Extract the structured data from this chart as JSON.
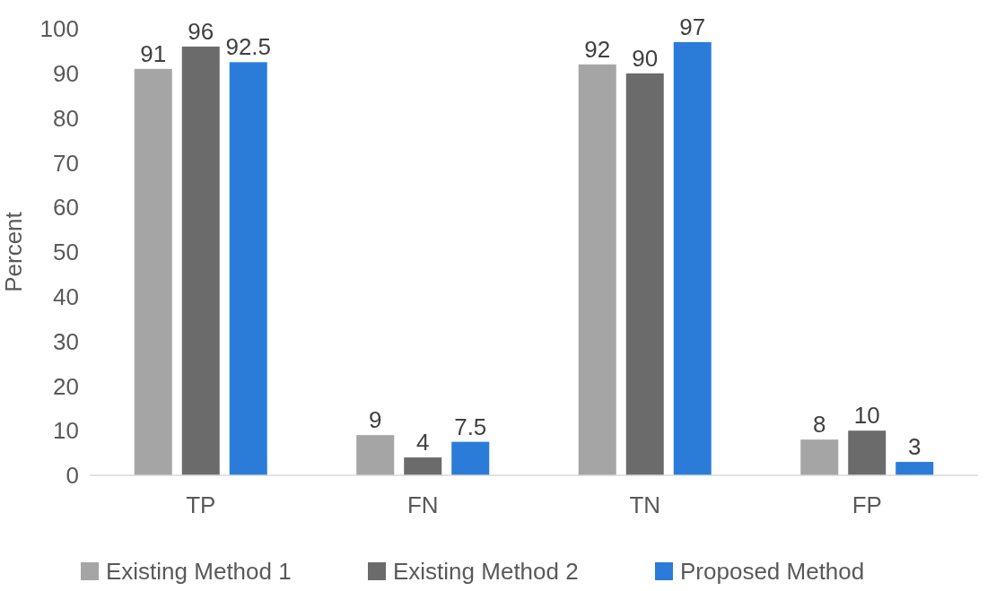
{
  "chart_data": {
    "type": "bar",
    "ylabel": "Percent",
    "categories": [
      "TP",
      "FN",
      "TN",
      "FP"
    ],
    "series": [
      {
        "name": "Existing Method 1",
        "color": "#a5a5a5",
        "values": [
          91,
          9,
          92,
          8
        ]
      },
      {
        "name": "Existing Method 2",
        "color": "#6b6b6b",
        "values": [
          96,
          4,
          90,
          10
        ]
      },
      {
        "name": "Proposed Method",
        "color": "#2b7cd8",
        "values": [
          92.5,
          7.5,
          97,
          3
        ]
      }
    ],
    "ylim": [
      0,
      100
    ],
    "yticks": [
      0,
      10,
      20,
      30,
      40,
      50,
      60,
      70,
      80,
      90,
      100
    ],
    "grid": false,
    "legend": "bottom",
    "data_labels": true
  }
}
